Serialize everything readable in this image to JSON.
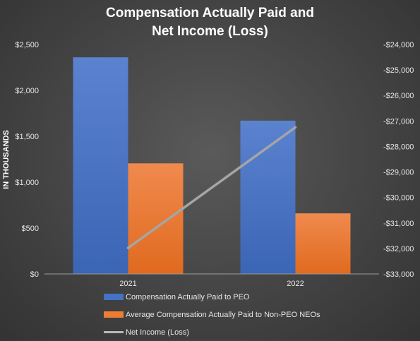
{
  "chart_data": {
    "type": "bar",
    "title_lines": [
      "Compensation Actually Paid and",
      "Net Income (Loss)"
    ],
    "categories": [
      "2021",
      "2022"
    ],
    "ylabel": "IN THOUSANDS",
    "ylim": [
      0,
      2500
    ],
    "y_ticks": [
      "$0",
      "$500",
      "$1,000",
      "$1,500",
      "$2,000",
      "$2,500"
    ],
    "y_tick_values": [
      0,
      500,
      1000,
      1500,
      2000,
      2500
    ],
    "y2lim": [
      -33000,
      -24000
    ],
    "y2_ticks": [
      "-$33,000",
      "-$32,000",
      "-$31,000",
      "-$30,000",
      "-$29,000",
      "-$28,000",
      "-$27,000",
      "-$26,000",
      "-$25,000",
      "-$24,000"
    ],
    "y2_tick_values": [
      -33000,
      -32000,
      -31000,
      -30000,
      -29000,
      -28000,
      -27000,
      -26000,
      -25000,
      -24000
    ],
    "series": [
      {
        "name": "Compensation Actually Paid to PEO",
        "type": "bar",
        "axis": "left",
        "color": "#4472c4",
        "values": [
          2360,
          1670
        ]
      },
      {
        "name": "Average Compensation Actually Paid to Non-PEO NEOs",
        "type": "bar",
        "axis": "left",
        "color": "#ed7d31",
        "values": [
          1205,
          660
        ]
      },
      {
        "name": "Net Income (Loss)",
        "type": "line",
        "axis": "right",
        "color": "#a5a5a5",
        "values": [
          -31980,
          -27250
        ]
      }
    ],
    "legend_position": "bottom",
    "grid": false
  }
}
